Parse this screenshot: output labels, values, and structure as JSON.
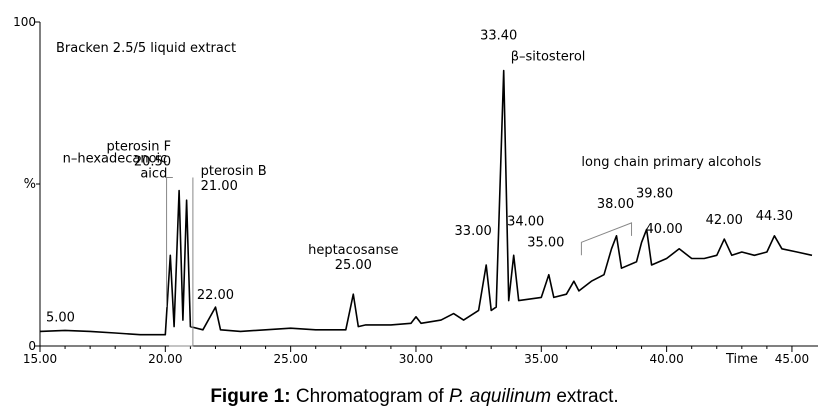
{
  "chart_data": {
    "type": "line",
    "title": "Bracken 2.5/5 liquid extract",
    "xlabel": "Time",
    "ylabel": "%",
    "xlim": [
      15.0,
      45.8
    ],
    "ylim": [
      0,
      100
    ],
    "x_ticks": [
      "15.00",
      "20.00",
      "25.00",
      "30.00",
      "35.00",
      "40.00",
      "45.00"
    ],
    "y_ticks": [
      "0",
      "100"
    ],
    "series": [
      {
        "points": [
          [
            15.0,
            4.5
          ],
          [
            16.0,
            4.8
          ],
          [
            17.0,
            4.5
          ],
          [
            18.0,
            4.0
          ],
          [
            19.0,
            3.5
          ],
          [
            20.0,
            3.5
          ],
          [
            20.2,
            28
          ],
          [
            20.35,
            6
          ],
          [
            20.55,
            48
          ],
          [
            20.7,
            8
          ],
          [
            20.85,
            45
          ],
          [
            21.0,
            6
          ],
          [
            21.5,
            5
          ],
          [
            22.0,
            12
          ],
          [
            22.2,
            5
          ],
          [
            23.0,
            4.5
          ],
          [
            24.0,
            5
          ],
          [
            25.0,
            5.5
          ],
          [
            26.0,
            5
          ],
          [
            27.2,
            5
          ],
          [
            27.5,
            16
          ],
          [
            27.7,
            6
          ],
          [
            28.0,
            6.5
          ],
          [
            29.0,
            6.5
          ],
          [
            29.8,
            7
          ],
          [
            30.0,
            9
          ],
          [
            30.2,
            7
          ],
          [
            31.0,
            8
          ],
          [
            31.5,
            10
          ],
          [
            31.9,
            8
          ],
          [
            32.5,
            11
          ],
          [
            32.8,
            25
          ],
          [
            33.0,
            11
          ],
          [
            33.2,
            12
          ],
          [
            33.5,
            85
          ],
          [
            33.7,
            14
          ],
          [
            33.9,
            28
          ],
          [
            34.1,
            14
          ],
          [
            35.0,
            15
          ],
          [
            35.3,
            22
          ],
          [
            35.5,
            15
          ],
          [
            36.0,
            16
          ],
          [
            36.3,
            20
          ],
          [
            36.5,
            17
          ],
          [
            37.0,
            20
          ],
          [
            37.5,
            22
          ],
          [
            37.8,
            30
          ],
          [
            38.0,
            34
          ],
          [
            38.2,
            24
          ],
          [
            38.8,
            26
          ],
          [
            39.0,
            32
          ],
          [
            39.2,
            36
          ],
          [
            39.4,
            25
          ],
          [
            40.0,
            27
          ],
          [
            40.5,
            30
          ],
          [
            41.0,
            27
          ],
          [
            41.5,
            27
          ],
          [
            42.0,
            28
          ],
          [
            42.3,
            33
          ],
          [
            42.6,
            28
          ],
          [
            43.0,
            29
          ],
          [
            43.5,
            28
          ],
          [
            44.0,
            29
          ],
          [
            44.3,
            34
          ],
          [
            44.6,
            30
          ],
          [
            45.2,
            29
          ],
          [
            45.8,
            28
          ]
        ]
      }
    ],
    "annotations": [
      {
        "lines": [
          "5.00"
        ],
        "x": 15.0,
        "y": 4.5
      },
      {
        "lines": [
          "n–hexadecanoic",
          "aicd"
        ],
        "x": 20.2,
        "y": 28
      },
      {
        "lines": [
          "pterosin F",
          "20.50"
        ],
        "x": 20.55,
        "y": 48
      },
      {
        "lines": [
          "pterosin B",
          "21.00"
        ],
        "x": 20.85,
        "y": 45
      },
      {
        "lines": [
          "22.00"
        ],
        "x": 22.0,
        "y": 12
      },
      {
        "lines": [
          "heptacosanse",
          "25.00"
        ],
        "x": 27.5,
        "y": 16
      },
      {
        "lines": [
          "33.00"
        ],
        "x": 32.8,
        "y": 25
      },
      {
        "lines": [
          "33.40"
        ],
        "x": 33.5,
        "y": 85
      },
      {
        "lines": [
          "β–sitosterol"
        ],
        "x": 33.5,
        "y": 85
      },
      {
        "lines": [
          "34.00"
        ],
        "x": 33.9,
        "y": 28
      },
      {
        "lines": [
          "35.00"
        ],
        "x": 35.3,
        "y": 22
      },
      {
        "lines": [
          "long  chain  primary  alcohols"
        ],
        "x": 37.0,
        "y": 50
      },
      {
        "lines": [
          "38.00"
        ],
        "x": 38.0,
        "y": 34
      },
      {
        "lines": [
          "39.80"
        ],
        "x": 39.2,
        "y": 36
      },
      {
        "lines": [
          "40.00"
        ],
        "x": 40.5,
        "y": 30
      },
      {
        "lines": [
          "42.00"
        ],
        "x": 42.3,
        "y": 33
      },
      {
        "lines": [
          "44.30"
        ],
        "x": 44.3,
        "y": 34
      }
    ]
  },
  "caption": {
    "label": "Figure 1:",
    "text_before": " Chromatogram of ",
    "species": "P. aquilinum",
    "text_after": " extract."
  }
}
